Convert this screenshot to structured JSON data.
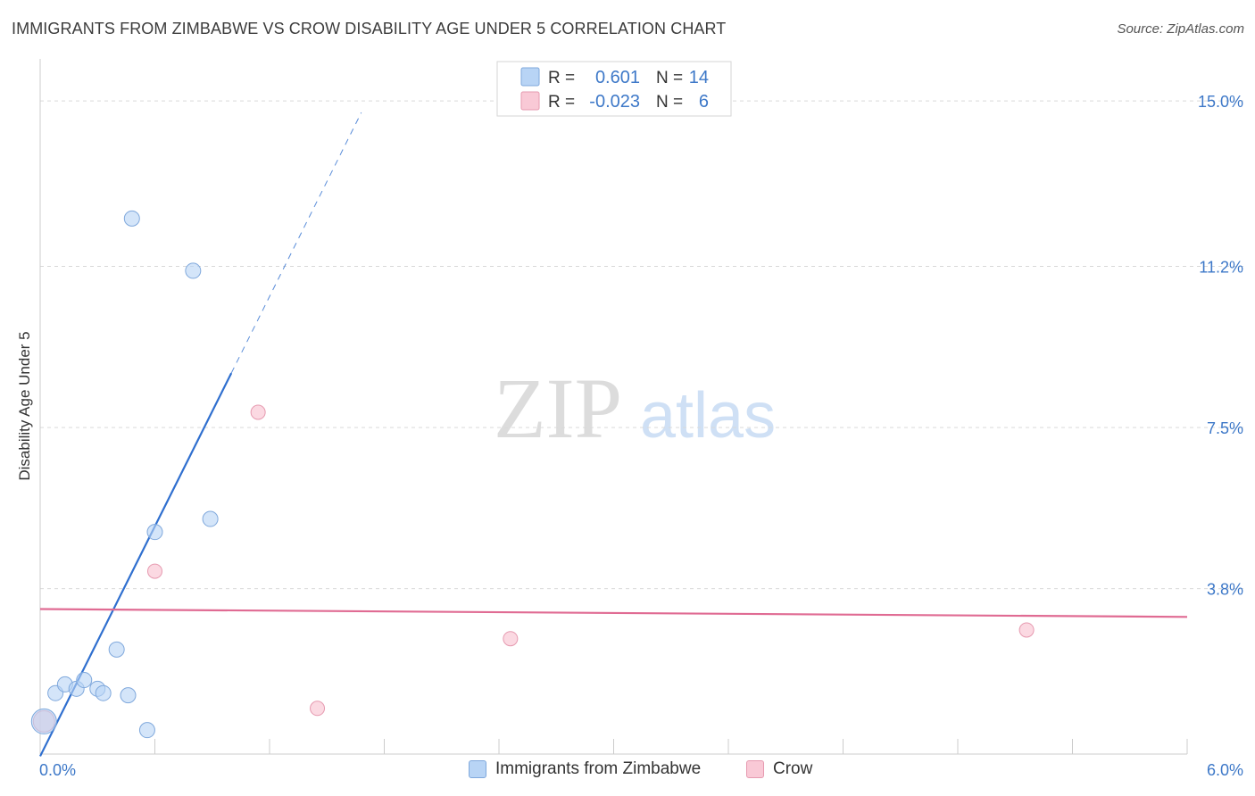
{
  "title": "IMMIGRANTS FROM ZIMBABWE VS CROW DISABILITY AGE UNDER 5 CORRELATION CHART",
  "source": "Source: ZipAtlas.com",
  "watermark": {
    "zip": "ZIP",
    "atlas": "atlas"
  },
  "colors": {
    "blue_fill": "#b8d4f5",
    "blue_stroke": "#7fa8dc",
    "blue_line": "#2f6fcf",
    "pink_fill": "#f9c9d6",
    "pink_stroke": "#e69ab0",
    "pink_line": "#e06b93",
    "tick_label": "#3d78c8",
    "grid": "#d9d9d9"
  },
  "legend": {
    "rows": [
      {
        "r_label": "R =",
        "r_value": "0.601",
        "n_label": "N =",
        "n_value": "14"
      },
      {
        "r_label": "R =",
        "r_value": "-0.023",
        "n_label": "N =",
        "n_value": "6"
      }
    ]
  },
  "chart_data": {
    "type": "scatter",
    "title": "IMMIGRANTS FROM ZIMBABWE VS CROW DISABILITY AGE UNDER 5 CORRELATION CHART",
    "xlabel": "",
    "ylabel": "Disability Age Under 5",
    "xlim": [
      0.0,
      6.0
    ],
    "ylim": [
      0.0,
      15.0
    ],
    "x_tick_labels": [
      "0.0%",
      "6.0%"
    ],
    "y_ticks": [
      3.8,
      7.5,
      11.2,
      15.0
    ],
    "y_tick_labels": [
      "3.8%",
      "7.5%",
      "11.2%",
      "15.0%"
    ],
    "grid": true,
    "legend_position": "top-center",
    "series": [
      {
        "name": "Immigrants from Zimbabwe",
        "color": "#b8d4f5",
        "r": 0.601,
        "n": 14,
        "points": [
          {
            "x": 0.02,
            "y": 0.75
          },
          {
            "x": 0.08,
            "y": 1.4
          },
          {
            "x": 0.13,
            "y": 1.6
          },
          {
            "x": 0.19,
            "y": 1.5
          },
          {
            "x": 0.23,
            "y": 1.7
          },
          {
            "x": 0.3,
            "y": 1.5
          },
          {
            "x": 0.33,
            "y": 1.4
          },
          {
            "x": 0.4,
            "y": 2.4
          },
          {
            "x": 0.46,
            "y": 1.35
          },
          {
            "x": 0.56,
            "y": 0.55
          },
          {
            "x": 0.6,
            "y": 5.1
          },
          {
            "x": 0.89,
            "y": 5.4
          },
          {
            "x": 0.48,
            "y": 12.3
          },
          {
            "x": 0.8,
            "y": 11.1
          }
        ],
        "trend": {
          "x0": 0.0,
          "y0": -0.05,
          "x1": 1.0,
          "y1": 8.75,
          "dash_to_x": 1.68
        }
      },
      {
        "name": "Crow",
        "color": "#f9c9d6",
        "r": -0.023,
        "n": 6,
        "points": [
          {
            "x": 0.02,
            "y": 0.75
          },
          {
            "x": 0.6,
            "y": 4.2
          },
          {
            "x": 1.14,
            "y": 7.85
          },
          {
            "x": 1.45,
            "y": 1.05
          },
          {
            "x": 2.46,
            "y": 2.65
          },
          {
            "x": 5.16,
            "y": 2.85
          }
        ],
        "trend": {
          "x0": 0.0,
          "y0": 3.33,
          "x1": 6.0,
          "y1": 3.15
        }
      }
    ]
  }
}
